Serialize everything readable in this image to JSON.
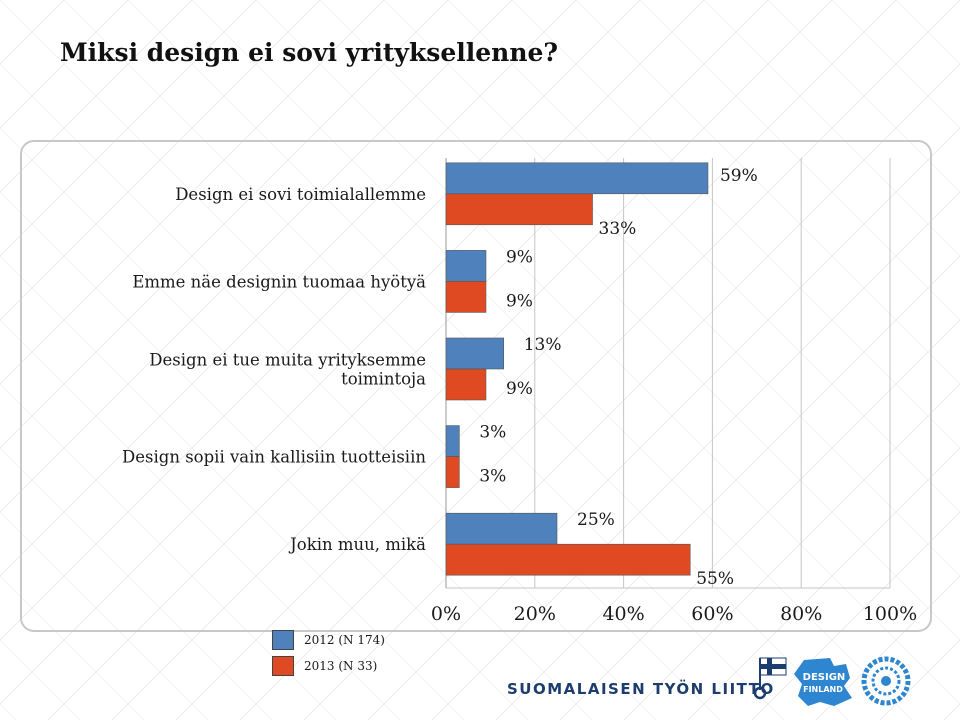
{
  "slide": {
    "title": "Miksi design ei sovi yrityksellenne?"
  },
  "chart_data": {
    "type": "bar",
    "orientation": "horizontal",
    "title": "Miksi design ei sovi yrityksellenne?",
    "categories": [
      [
        "Design ei sovi toimialallemme"
      ],
      [
        "Emme näe designin tuomaa hyötyä"
      ],
      [
        "Design ei tue muita yrityksemme",
        "toimintoja"
      ],
      [
        "Design sopii vain kallisiin tuotteisiin"
      ],
      [
        "Jokin muu, mikä"
      ]
    ],
    "series": [
      {
        "name": "2012 (N 174)",
        "color": "#4f81bd",
        "values": [
          59,
          9,
          13,
          3,
          25
        ],
        "labels": [
          "59%",
          "9%",
          "13%",
          "3%",
          "25%"
        ]
      },
      {
        "name": "2013 (N 33)",
        "color": "#e04a22",
        "values": [
          33,
          9,
          9,
          3,
          55
        ],
        "labels": [
          "33%",
          "9%",
          "9%",
          "3%",
          "55%"
        ]
      }
    ],
    "xlim": [
      0,
      100
    ],
    "xticks": [
      "0%",
      "20%",
      "40%",
      "60%",
      "80%",
      "100%"
    ],
    "grid": true,
    "legend_position": "bottom-left"
  },
  "footer": {
    "organization": "SUOMALAISEN TYÖN LIITTO",
    "logo_text": [
      "DESIGN",
      "FINLAND"
    ]
  }
}
